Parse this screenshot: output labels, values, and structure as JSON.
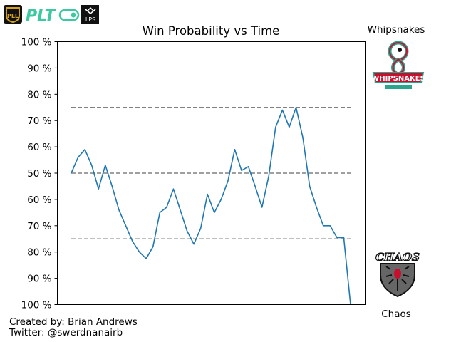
{
  "chart_data": {
    "type": "line",
    "title": "Win Probability vs Time",
    "xlabel": "",
    "ylabel": "",
    "y_tick_labels": [
      "100 %",
      "90 %",
      "80 %",
      "70 %",
      "60 %",
      "50 %",
      "60 %",
      "70 %",
      "80 %",
      "90 %",
      "100 %"
    ],
    "ylim": [
      0,
      100
    ],
    "x_ticks_visible": false,
    "grid": false,
    "reference_lines": [
      75,
      50,
      25
    ],
    "series": [
      {
        "color": "#1f77b4",
        "values": [
          50,
          56,
          59,
          53,
          44,
          53,
          45,
          36,
          30,
          24,
          20,
          17.5,
          22,
          35,
          37,
          44,
          36,
          28,
          23,
          29,
          42,
          35,
          40,
          47,
          59,
          51,
          52.5,
          45,
          37,
          49,
          67.5,
          74,
          67.5,
          75,
          63.5,
          45,
          37,
          30,
          30,
          25.5,
          25.5,
          0
        ]
      }
    ]
  },
  "teams": {
    "top": "Whipsnakes",
    "bottom": "Chaos"
  },
  "logos": {
    "league_badge": "PLL",
    "wordmark": "PLT",
    "partner_badge": "LPS",
    "top_team_wordmark": "WHIPSNAKES",
    "bottom_team_wordmark": "CHAOS"
  },
  "credits": {
    "line1": "Created by: Brian Andrews",
    "line2": "Twitter: @swerdnanairb"
  },
  "colors": {
    "line": "#1f77b4",
    "reference": "#808080",
    "pll_gold": "#d4a017",
    "plt_teal": "#3cc8a0",
    "whipsnakes_red": "#c8102e",
    "whipsnakes_teal": "#2aa58c",
    "chaos_gray": "#555555"
  }
}
